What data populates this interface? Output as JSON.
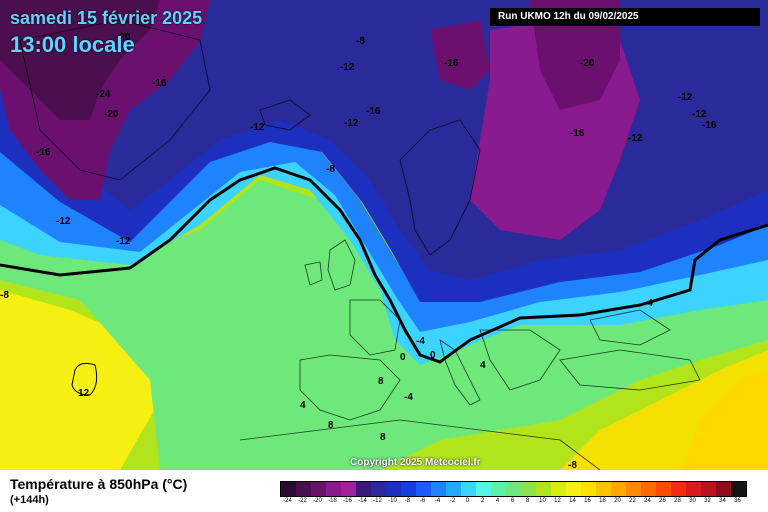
{
  "header": {
    "date": "samedi 15 février 2025",
    "time": "13:00 locale",
    "run": "Run UKMO 12h du 09/02/2025"
  },
  "copyright": "Copyright 2025 Meteociel.fr",
  "footer": {
    "variable": "Température à 850hPa (°C)",
    "lead": "(+144h)"
  },
  "legend": {
    "labels": [
      "-24",
      "-22",
      "-20",
      "-18",
      "-16",
      "-14",
      "-12",
      "-10",
      "-8",
      "-6",
      "-4",
      "-2",
      "0",
      "2",
      "4",
      "6",
      "8",
      "10",
      "12",
      "14",
      "16",
      "18",
      "20",
      "22",
      "24",
      "26",
      "28",
      "30",
      "32",
      "34",
      "36"
    ],
    "colors": [
      "#2b0a33",
      "#4b0f4f",
      "#6c1070",
      "#8a1a8f",
      "#a020a0",
      "#3a1a7a",
      "#2a2a9a",
      "#1c2fbf",
      "#1040dd",
      "#1a5cff",
      "#1f82ff",
      "#26a8ff",
      "#3dd3ff",
      "#55f5e6",
      "#5ff0a8",
      "#6ee87a",
      "#8ce24a",
      "#b1e41a",
      "#d6ee10",
      "#f6f012",
      "#ffe000",
      "#ffc400",
      "#ffa800",
      "#ff8a00",
      "#ff6a00",
      "#ff4a00",
      "#f22d10",
      "#d81c1c",
      "#b8141e",
      "#900e1a",
      "#151515"
    ]
  },
  "isotherm_labels": [
    "-20",
    "-8",
    "-16",
    "-20",
    "-24",
    "-16",
    "-20",
    "-12",
    "-16",
    "-12",
    "-12",
    "-16",
    "-12",
    "-12",
    "-16",
    "-12",
    "-8",
    "-16",
    "-12",
    "-12",
    "-8",
    "-4",
    "-4",
    "0",
    "0",
    "4",
    "8",
    "12",
    "4",
    "8",
    "8",
    "-4",
    "-8"
  ]
}
